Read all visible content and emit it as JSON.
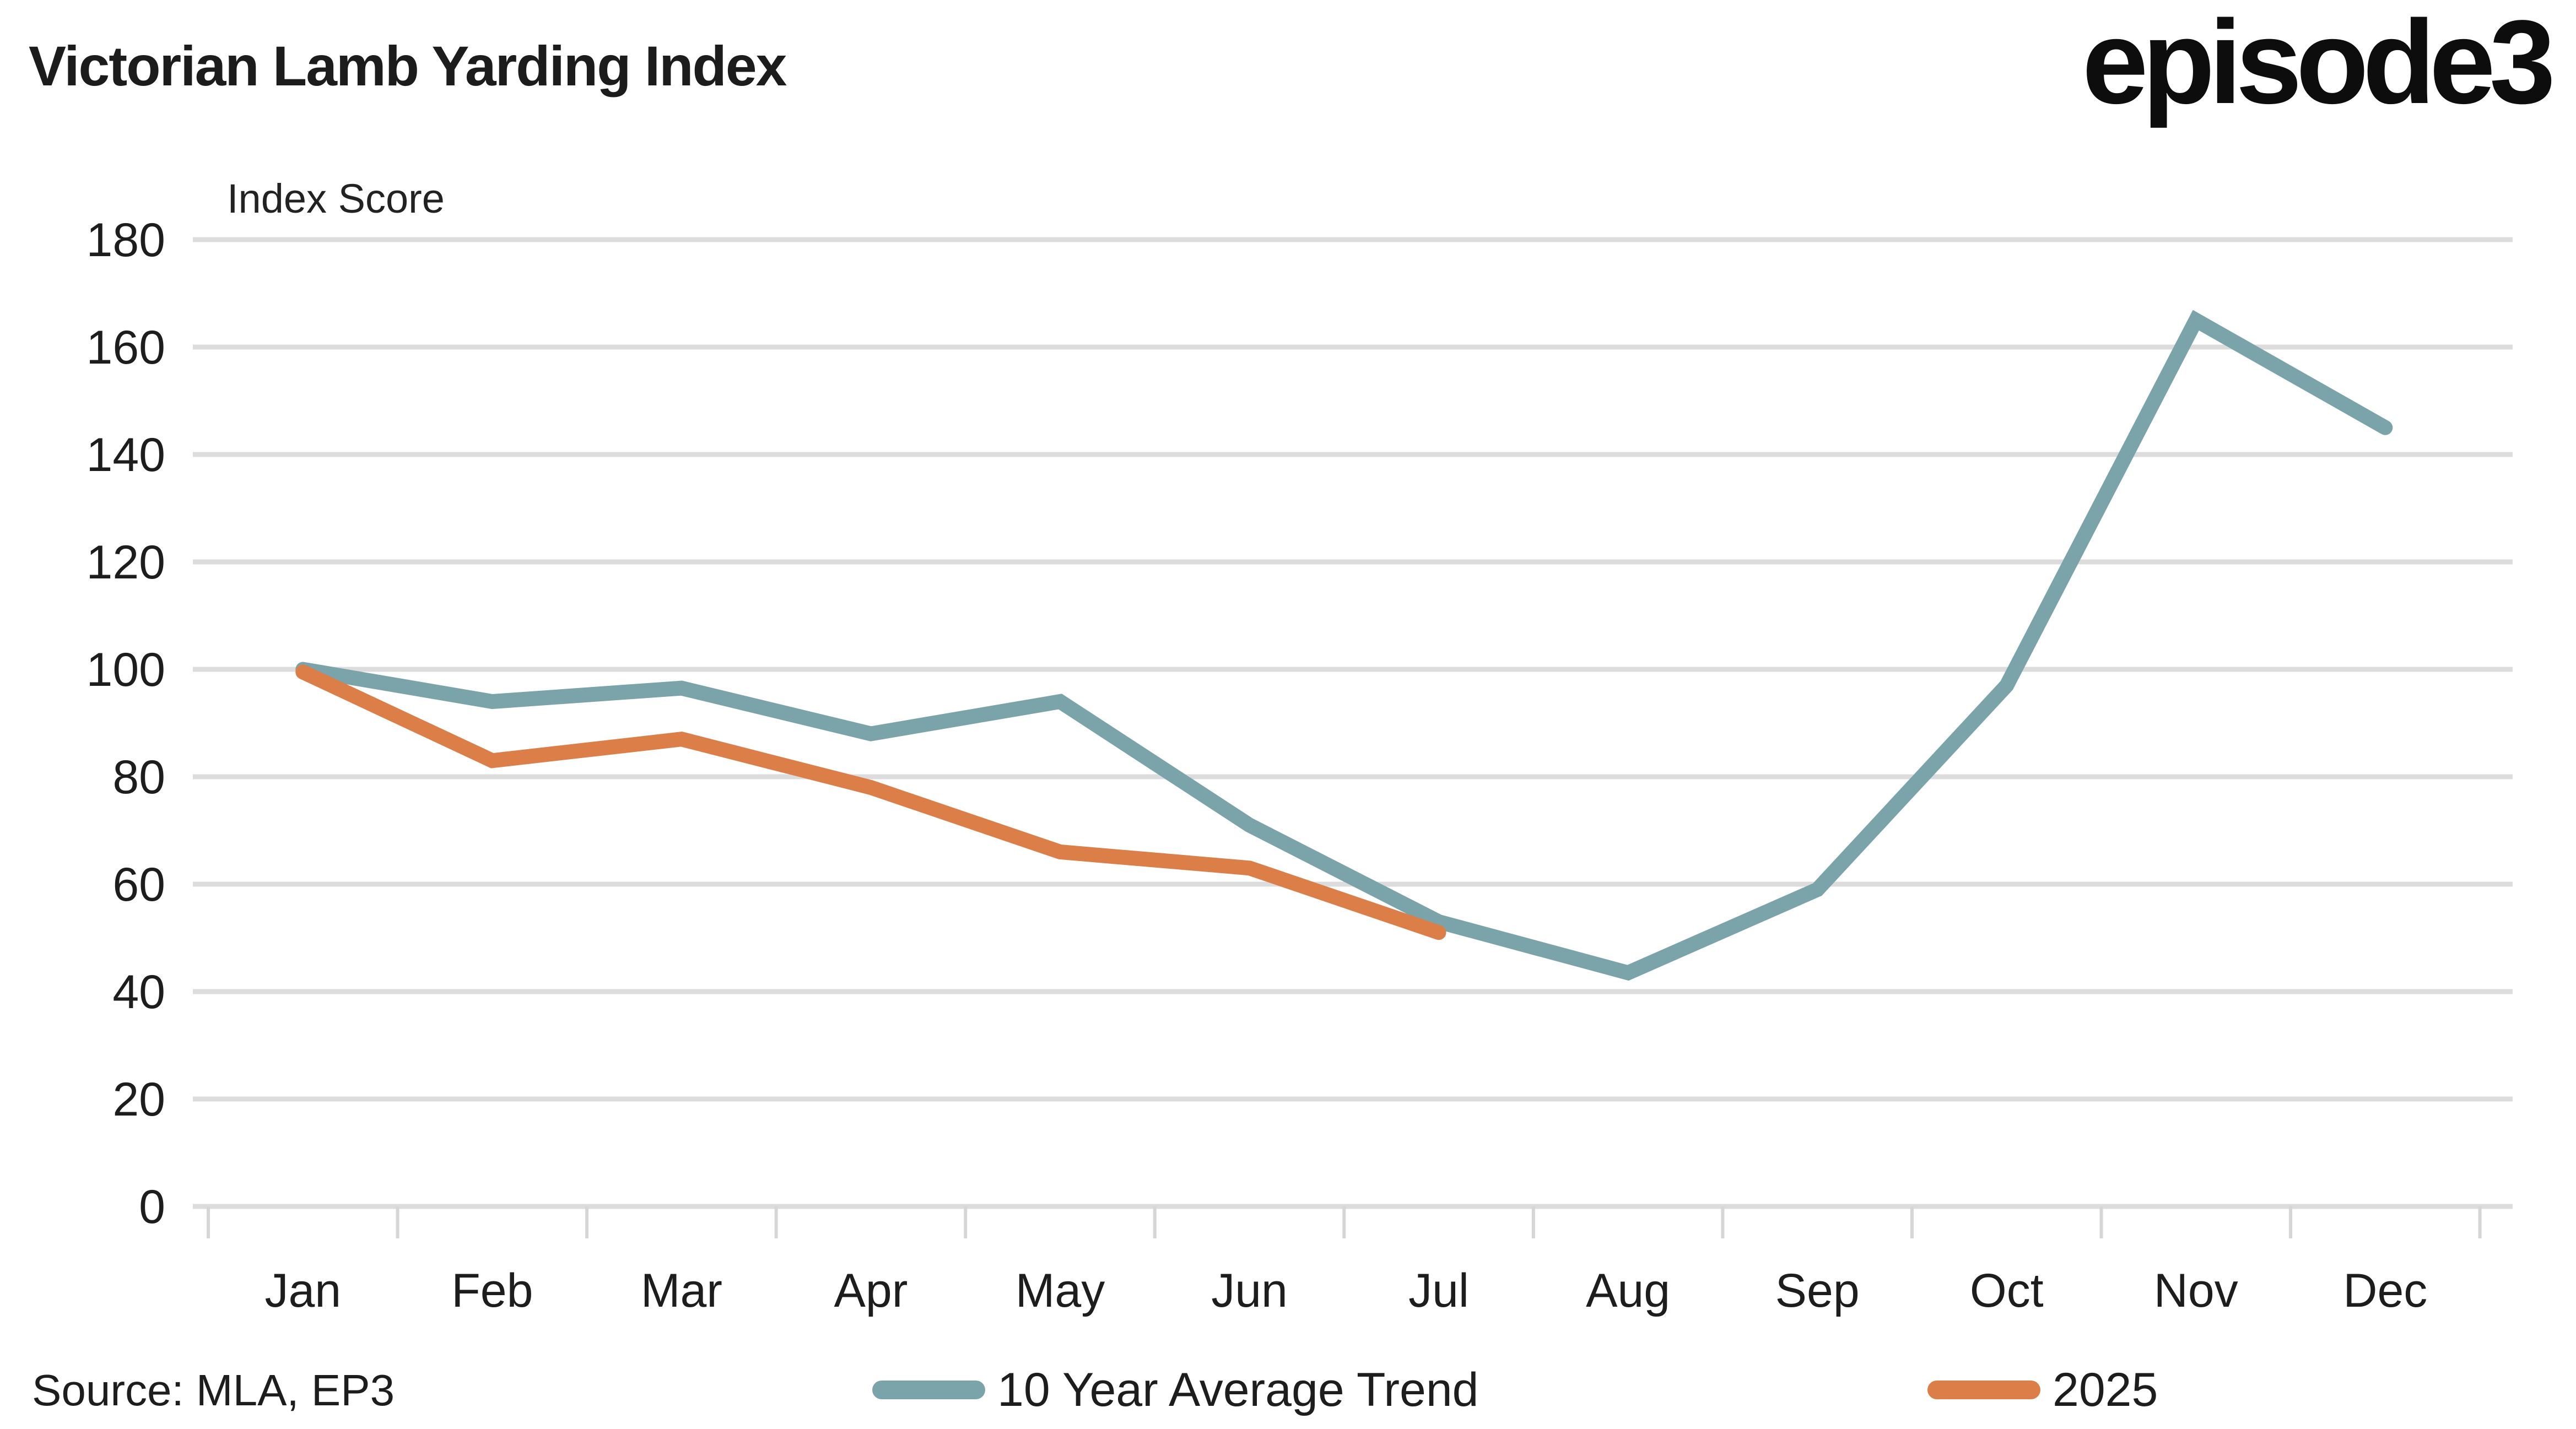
{
  "header": {
    "title": "Victorian Lamb Yarding Index",
    "logo_text": "episode3"
  },
  "chart_data": {
    "type": "line",
    "title": "Victorian Lamb Yarding Index",
    "ylabel": "Index Score",
    "xlabel": "",
    "ylim": [
      0,
      180
    ],
    "ytick_step": 20,
    "ytick_labels": [
      "0",
      "20",
      "40",
      "60",
      "80",
      "100",
      "120",
      "140",
      "160",
      "180"
    ],
    "categories": [
      "Jan",
      "Feb",
      "Mar",
      "Apr",
      "May",
      "Jun",
      "Jul",
      "Aug",
      "Sep",
      "Oct",
      "Nov",
      "Dec"
    ],
    "grid": "horizontal",
    "legend_position": "bottom",
    "series": [
      {
        "name": "10 Year Average Trend",
        "color": "#7AA4AA",
        "values": [
          100,
          94,
          96.5,
          88,
          94,
          71,
          53,
          43.5,
          59,
          97,
          165,
          145
        ]
      },
      {
        "name": "2025",
        "color": "#DC7E48",
        "values": [
          99.5,
          83,
          87,
          78,
          66,
          63,
          51
        ]
      }
    ]
  },
  "footer": {
    "source": "Source: MLA, EP3"
  },
  "colors": {
    "grid": "#DCDCDC",
    "tick": "#D6D6D6",
    "text": "#1d1d1d"
  }
}
